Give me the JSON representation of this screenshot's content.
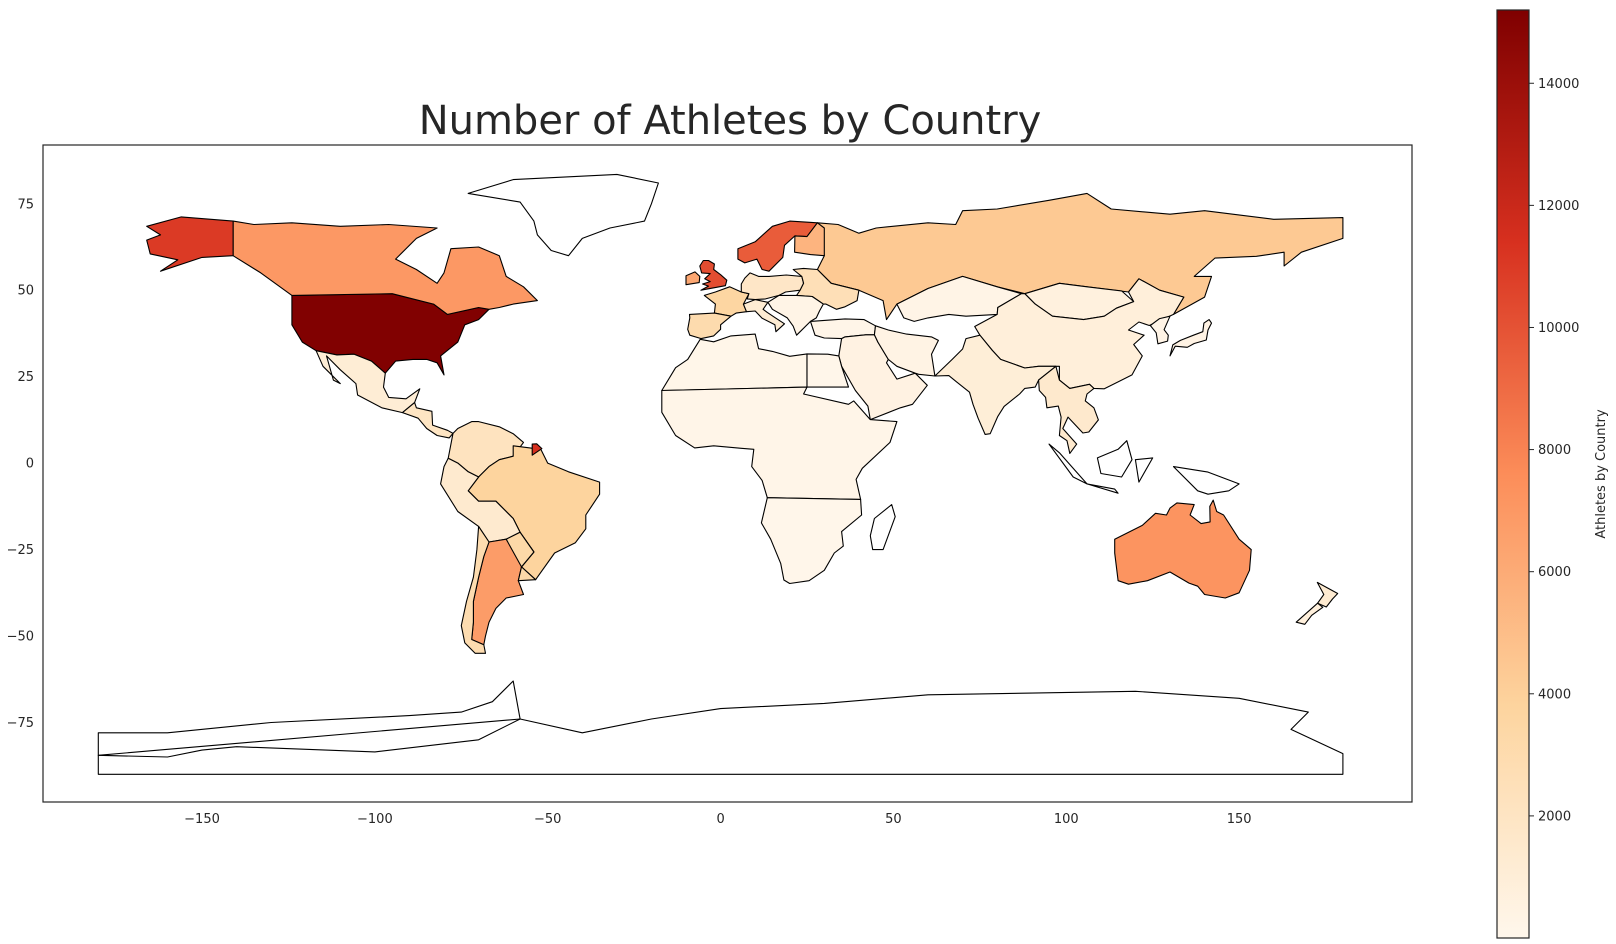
{
  "chart_data": {
    "type": "choropleth",
    "title": "Number of Athletes by Country",
    "xlabel": "",
    "ylabel": "",
    "xlim": [
      -196,
      200
    ],
    "ylim": [
      -98,
      92
    ],
    "x_ticks": [
      "−150",
      "−100",
      "−50",
      "0",
      "50",
      "100",
      "150"
    ],
    "y_ticks": [
      "75",
      "50",
      "25",
      "0",
      "−25",
      "−50",
      "−75"
    ],
    "x_tick_values": [
      -150,
      -100,
      -50,
      0,
      50,
      100,
      150
    ],
    "y_tick_values": [
      75,
      50,
      25,
      0,
      -25,
      -50,
      -75
    ],
    "grid": false,
    "colormap": "OrRd",
    "colorbar": {
      "label": "Athletes by Country",
      "min": 0,
      "max": 15200,
      "ticks": [
        "2000",
        "4000",
        "6000",
        "8000",
        "10000",
        "12000",
        "14000"
      ],
      "tick_values": [
        2000,
        4000,
        6000,
        8000,
        10000,
        12000,
        14000
      ]
    },
    "series": [
      {
        "values": [
          15100,
          7000,
          1100,
          2000,
          11000,
          2200,
          3800,
          1400,
          6800,
          2900,
          3300,
          4400,
          9600,
          5500,
          10200,
          6200,
          3600,
          3000,
          1800,
          2600,
          1200,
          300,
          200,
          500,
          400,
          300,
          700,
          900,
          1000,
          1500,
          400,
          300,
          7200,
          1300,
          800,
          11500,
          150,
          200,
          100,
          100
        ]
      }
    ]
  },
  "colors": {
    "stroke": "#000000",
    "cmap_stops": [
      "#fff7ec",
      "#fdd49e",
      "#fc8d59",
      "#d7301f",
      "#7f0000"
    ]
  }
}
